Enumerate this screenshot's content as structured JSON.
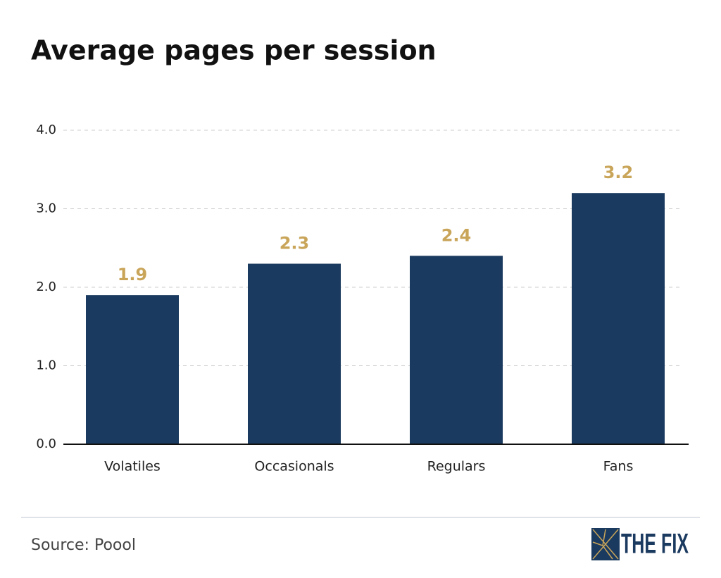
{
  "chart_data": {
    "type": "bar",
    "title": "Average pages per session",
    "categories": [
      "Volatiles",
      "Occasionals",
      "Regulars",
      "Fans"
    ],
    "values": [
      1.9,
      2.3,
      2.4,
      3.2
    ],
    "color": "#1b3a5f",
    "label_color": "#c9a55a",
    "ylim": [
      0,
      4
    ],
    "yticks": [
      {
        "value": 0,
        "label": "0.0"
      },
      {
        "value": 1,
        "label": "1.0"
      },
      {
        "value": 2,
        "label": "2.0"
      },
      {
        "value": 3,
        "label": "3.0"
      },
      {
        "value": 4,
        "label": "4.0"
      }
    ],
    "grid": true,
    "source": "Source: Poool",
    "logo": "THE FIX"
  }
}
